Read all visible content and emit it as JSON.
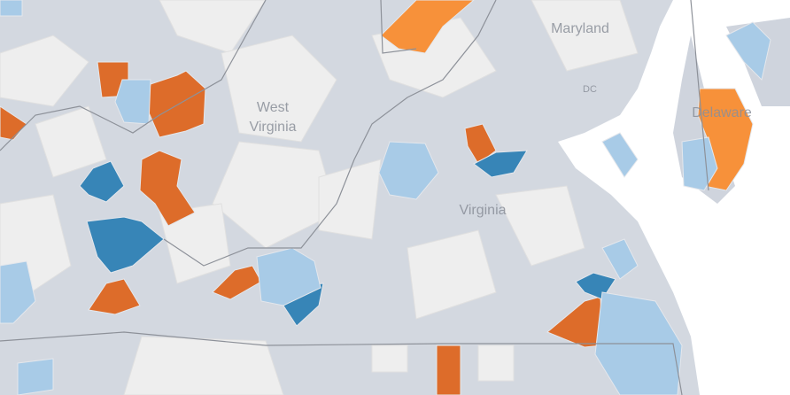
{
  "map": {
    "labels": {
      "maryland": "Maryland",
      "west_virginia": [
        "West",
        "Virginia"
      ],
      "virginia": "Virginia",
      "delaware": "Delaware",
      "dc": "DC"
    }
  }
}
